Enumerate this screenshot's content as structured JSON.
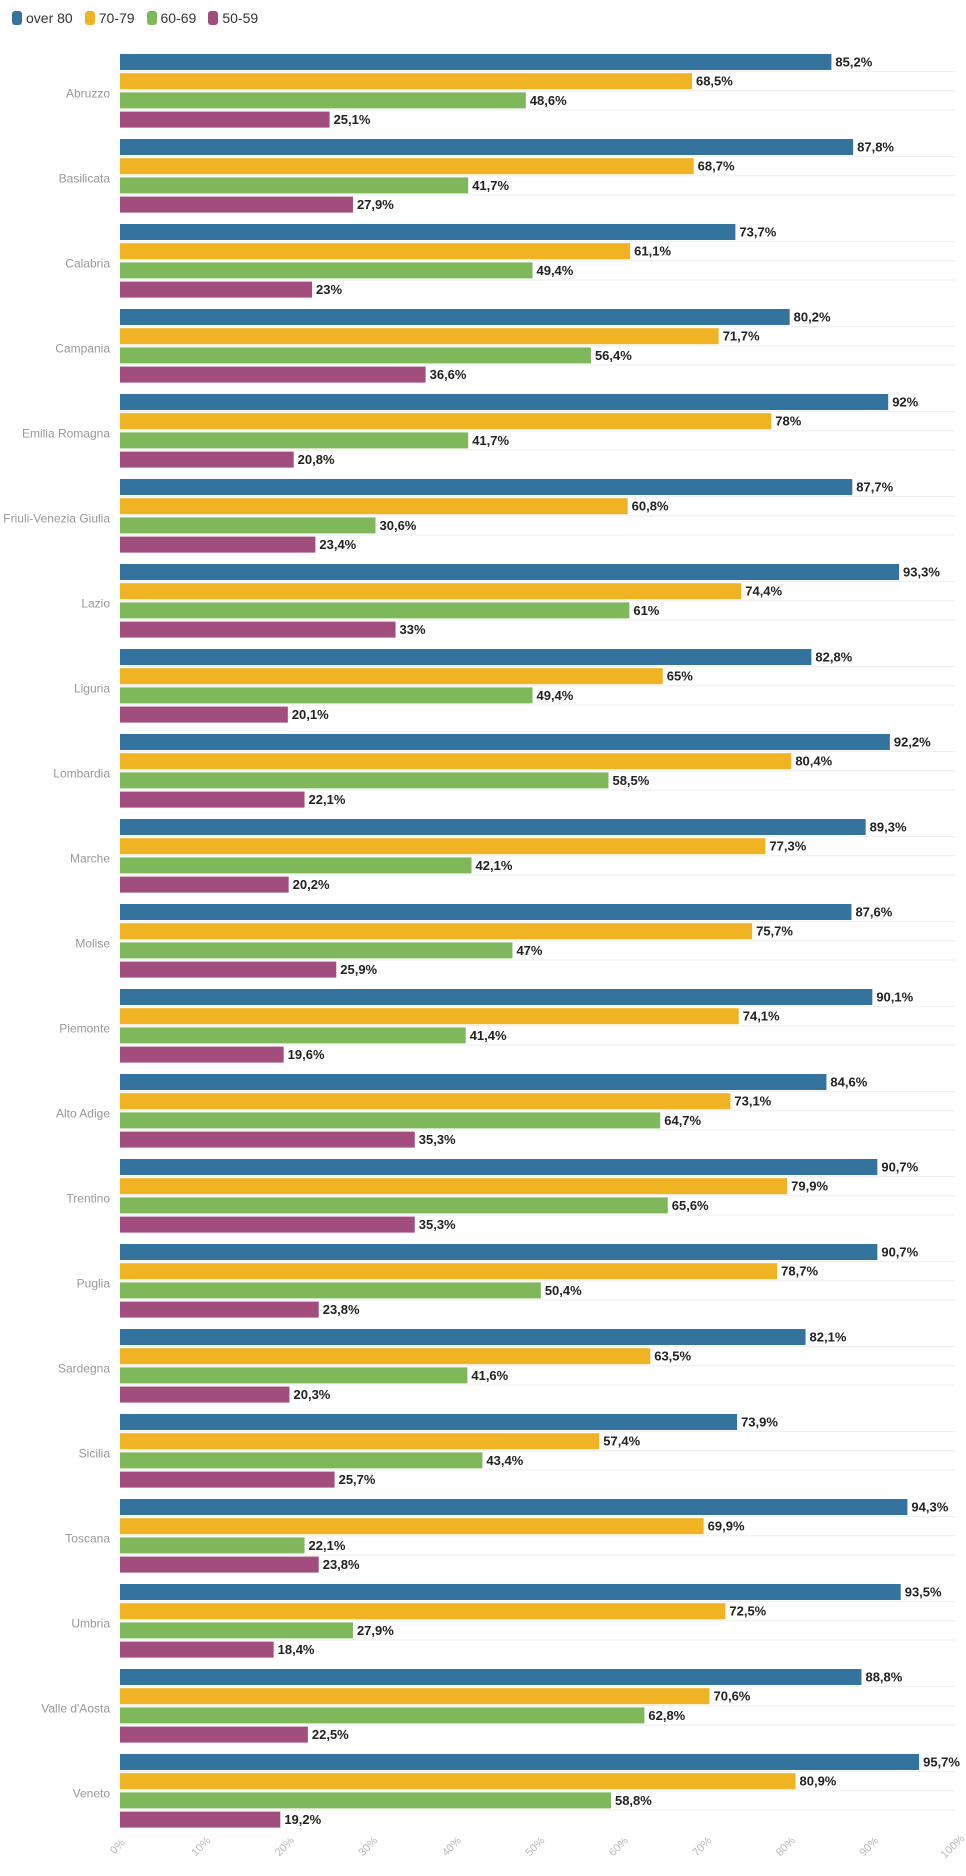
{
  "chart_data": {
    "type": "bar",
    "orientation": "horizontal",
    "categories": [
      "Abruzzo",
      "Basilicata",
      "Calabria",
      "Campania",
      "Emilia Romagna",
      "Friuli-Venezia Giulia",
      "Lazio",
      "Liguria",
      "Lombardia",
      "Marche",
      "Molise",
      "Piemonte",
      "Alto Adige",
      "Trentino",
      "Puglia",
      "Sardegna",
      "Sicilia",
      "Toscana",
      "Umbria",
      "Valle d'Aosta",
      "Veneto"
    ],
    "series": [
      {
        "name": "over 80",
        "color": "#33739e",
        "values": [
          85.2,
          87.8,
          73.7,
          80.2,
          92,
          87.7,
          93.3,
          82.8,
          92.2,
          89.3,
          87.6,
          90.1,
          84.6,
          90.7,
          90.7,
          82.1,
          73.9,
          94.3,
          93.5,
          88.8,
          95.7
        ],
        "labels": [
          "85,2%",
          "87,8%",
          "73,7%",
          "80,2%",
          "92%",
          "87,7%",
          "93,3%",
          "82,8%",
          "92,2%",
          "89,3%",
          "87,6%",
          "90,1%",
          "84,6%",
          "90,7%",
          "90,7%",
          "82,1%",
          "73,9%",
          "94,3%",
          "93,5%",
          "88,8%",
          "95,7%"
        ]
      },
      {
        "name": "70-79",
        "color": "#f0b323",
        "values": [
          68.5,
          68.7,
          61.1,
          71.7,
          78,
          60.8,
          74.4,
          65,
          80.4,
          77.3,
          75.7,
          74.1,
          73.1,
          79.9,
          78.7,
          63.5,
          57.4,
          69.9,
          72.5,
          70.6,
          80.9
        ],
        "labels": [
          "68,5%",
          "68,7%",
          "61,1%",
          "71,7%",
          "78%",
          "60,8%",
          "74,4%",
          "65%",
          "80,4%",
          "77,3%",
          "75,7%",
          "74,1%",
          "73,1%",
          "79,9%",
          "78,7%",
          "63,5%",
          "57,4%",
          "69,9%",
          "72,5%",
          "70,6%",
          "80,9%"
        ]
      },
      {
        "name": "60-69",
        "color": "#7fb85a",
        "values": [
          48.6,
          41.7,
          49.4,
          56.4,
          41.7,
          30.6,
          61,
          49.4,
          58.5,
          42.1,
          47,
          41.4,
          64.7,
          65.6,
          50.4,
          41.6,
          43.4,
          22.1,
          27.9,
          62.8,
          58.8
        ],
        "labels": [
          "48,6%",
          "41,7%",
          "49,4%",
          "56,4%",
          "41,7%",
          "30,6%",
          "61%",
          "49,4%",
          "58,5%",
          "42,1%",
          "47%",
          "41,4%",
          "64,7%",
          "65,6%",
          "50,4%",
          "41,6%",
          "43,4%",
          "22,1%",
          "27,9%",
          "62,8%",
          "58,8%"
        ]
      },
      {
        "name": "50-59",
        "color": "#a14d7e",
        "values": [
          25.1,
          27.9,
          23,
          36.6,
          20.8,
          23.4,
          33,
          20.1,
          22.1,
          20.2,
          25.9,
          19.6,
          35.3,
          35.3,
          23.8,
          20.3,
          25.7,
          23.8,
          18.4,
          22.5,
          19.2
        ],
        "labels": [
          "25,1%",
          "27,9%",
          "23%",
          "36,6%",
          "20,8%",
          "23,4%",
          "33%",
          "20,1%",
          "22,1%",
          "20,2%",
          "25,9%",
          "19,6%",
          "35,3%",
          "35,3%",
          "23,8%",
          "20,3%",
          "25,7%",
          "23,8%",
          "18,4%",
          "22,5%",
          "19,2%"
        ]
      }
    ],
    "xlim": [
      0,
      100
    ],
    "x_ticks": [
      "0%",
      "10%",
      "20%",
      "30%",
      "40%",
      "50%",
      "60%",
      "70%",
      "80%",
      "90%",
      "100%"
    ],
    "legend_position": "top-left",
    "title": "",
    "xlabel": "",
    "ylabel": "",
    "grid": "horizontal separators"
  }
}
